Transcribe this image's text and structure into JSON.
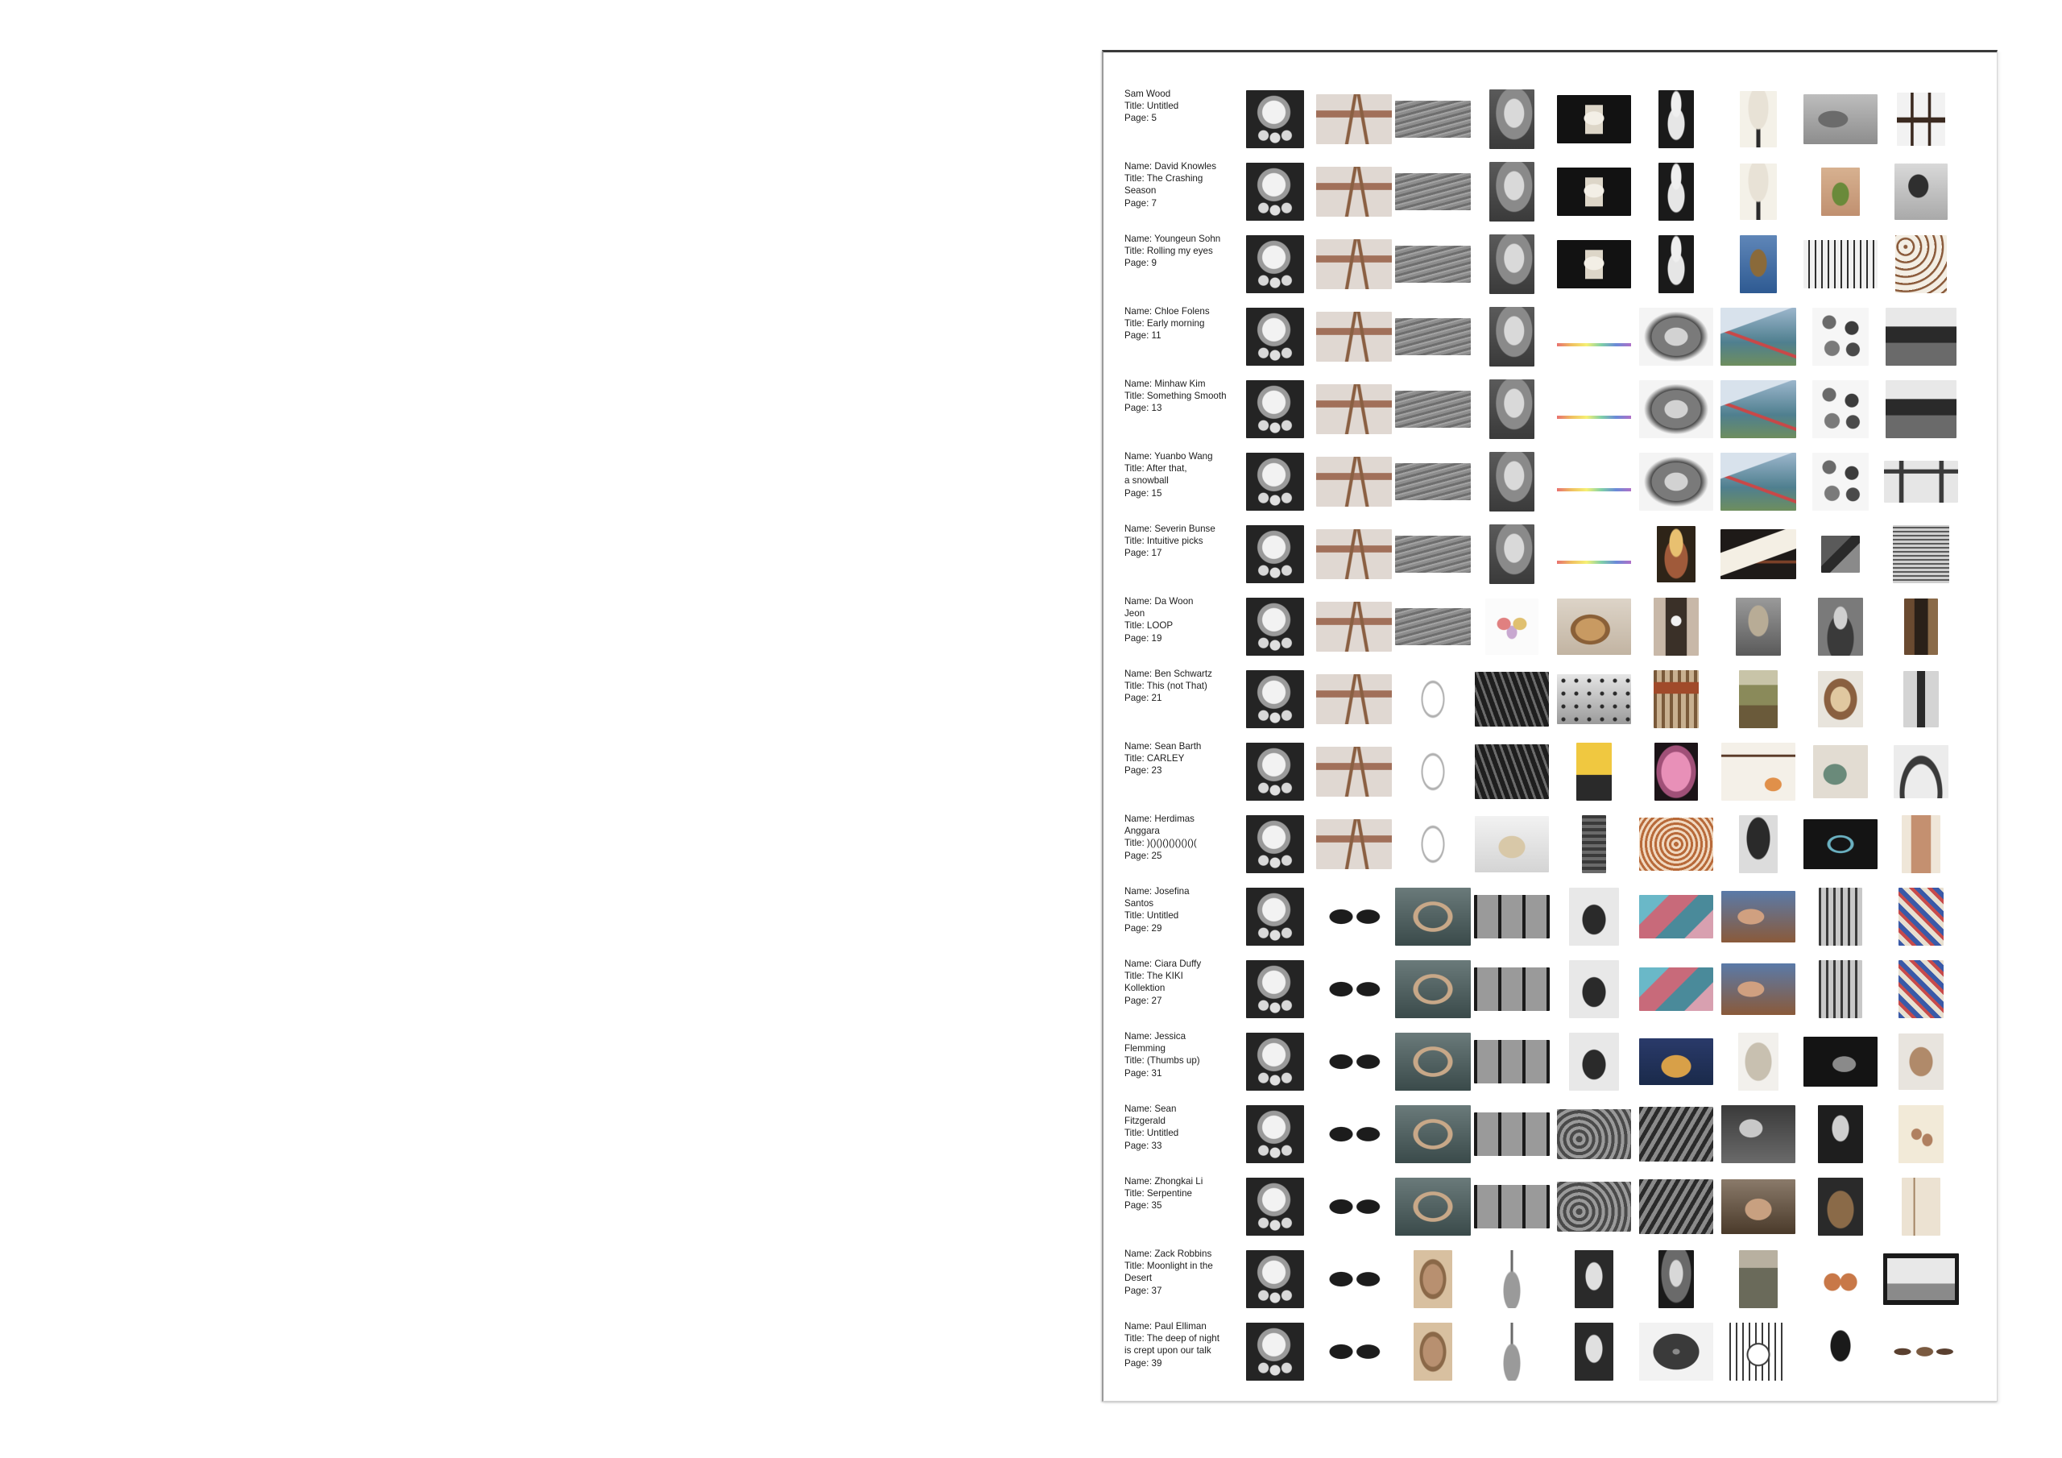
{
  "layout": {
    "thumb_columns": 9
  },
  "entries": [
    {
      "lines": [
        "Sam Wood",
        "Title: Untitled",
        "Page: 5"
      ],
      "thumbs": [
        "moon-crescent",
        "wooden-deer",
        "grey-texture-strip",
        "fist-sculpture",
        "pagoda-object",
        "venus-statue",
        "goblet",
        "elephant-photo",
        "wooden-chair"
      ]
    },
    {
      "lines": [
        "Name: David Knowles",
        "Title: The Crashing Season",
        "Page: 7"
      ],
      "thumbs": [
        "moon-crescent",
        "wooden-deer",
        "grey-texture-strip",
        "fist-sculpture",
        "pagoda-object",
        "venus-statue",
        "goblet",
        "small-figure-photo",
        "bw-figure-photo"
      ]
    },
    {
      "lines": [
        "Name: Youngeun Sohn",
        "Title: Rolling my eyes",
        "Page: 9"
      ],
      "thumbs": [
        "moon-crescent",
        "wooden-deer",
        "grey-texture-strip",
        "fist-sculpture",
        "pagoda-object",
        "venus-statue",
        "blue-pendant",
        "group-photo",
        "figure-chart"
      ]
    },
    {
      "lines": [
        "Name: Chloe Folens",
        "Title: Early morning",
        "Page: 11"
      ],
      "thumbs": [
        "moon-crescent",
        "wooden-deer",
        "grey-texture-strip",
        "fist-sculpture",
        "color-spectrum",
        "grey-stone",
        "mountain-landscape",
        "vessel-collection",
        "bw-house-photo"
      ]
    },
    {
      "lines": [
        "Name: Minhaw Kim",
        "Title: Something Smooth",
        "Page: 13"
      ],
      "thumbs": [
        "moon-crescent",
        "wooden-deer",
        "grey-texture-strip",
        "fist-sculpture",
        "color-spectrum",
        "grey-stone",
        "mountain-landscape",
        "vessel-collection",
        "bw-house-photo"
      ]
    },
    {
      "lines": [
        "Name: Yuanbo Wang",
        "Title: After that,",
        "a snowball",
        "Page: 15"
      ],
      "thumbs": [
        "moon-crescent",
        "wooden-deer",
        "grey-texture-strip",
        "fist-sculpture",
        "color-spectrum",
        "grey-stone",
        "mountain-landscape",
        "vessel-collection",
        "wooden-table"
      ]
    },
    {
      "lines": [
        "Name: Severin Bunse",
        "Title: Intuitive picks",
        "Page: 17"
      ],
      "thumbs": [
        "moon-crescent",
        "wooden-deer",
        "grey-texture-strip",
        "fist-sculpture",
        "color-spectrum",
        "masked-figure",
        "white-box-object",
        "grey-book",
        "ornate-cabinet"
      ]
    },
    {
      "lines": [
        "Name: Da Woon",
        "Jeon",
        "Title: LOOP",
        "Page: 19"
      ],
      "thumbs": [
        "moon-crescent",
        "wooden-deer",
        "grey-texture-strip",
        "ink-blot",
        "horn-object",
        "mantel-clock",
        "carved-figure",
        "seated-portrait",
        "doorway-photo"
      ]
    },
    {
      "lines": [
        "Name: Ben Schwartz",
        "Title: This (not That)",
        "Page: 21"
      ],
      "thumbs": [
        "moon-crescent",
        "wooden-deer",
        "line-drawing",
        "dark-architecture",
        "dotted-sky",
        "rust-panel",
        "field-landscape",
        "shell-object",
        "tall-figure"
      ]
    },
    {
      "lines": [
        "Name: Sean Barth",
        "Title: CARLEY",
        "Page: 23"
      ],
      "thumbs": [
        "moon-crescent",
        "wooden-deer",
        "line-drawing",
        "dark-architecture",
        "yellow-interior",
        "pink-mask",
        "hanging-objects",
        "ceramic-mug",
        "arch-sculpture"
      ]
    },
    {
      "lines": [
        "Name: Herdimas",
        "Anggara",
        "Title: )()()()()()()()(",
        "Page: 25"
      ],
      "thumbs": [
        "moon-crescent",
        "wooden-deer",
        "line-drawing",
        "goat-sculpture",
        "stone-pillar",
        "woven-knot",
        "hooded-figure",
        "bead-loop",
        "chair-illustration"
      ]
    },
    {
      "lines": [
        "Name: Josefina",
        "Santos",
        "Title: Untitled",
        "Page: 29"
      ],
      "thumbs": [
        "moon-crescent",
        "black-stones",
        "stone-circle",
        "film-strip",
        "rider-photo",
        "crystal-cluster",
        "embrace-photo",
        "iron-gate",
        "pattern-textile"
      ]
    },
    {
      "lines": [
        "Name: Ciara Duffy",
        "Title: The KIKI",
        "Kollektion",
        "Page: 27"
      ],
      "thumbs": [
        "moon-crescent",
        "black-stones",
        "stone-circle",
        "film-strip",
        "rider-photo",
        "crystal-cluster",
        "embrace-photo",
        "iron-gate",
        "pattern-textile"
      ]
    },
    {
      "lines": [
        "Name: Jessica",
        "Flemming",
        "Title: (Thumbs up)",
        "Page: 31"
      ],
      "thumbs": [
        "moon-crescent",
        "black-stones",
        "stone-circle",
        "film-strip",
        "rider-photo",
        "gold-canoe",
        "carved-stele",
        "dark-reclining",
        "armchair-photo"
      ]
    },
    {
      "lines": [
        "Name: Sean",
        "Fitzgerald",
        "Title: Untitled",
        "Page: 33"
      ],
      "thumbs": [
        "moon-crescent",
        "black-stones",
        "stone-circle",
        "film-strip",
        "woven-shells",
        "workshop-photo",
        "man-photo",
        "bw-portrait",
        "handprint-paper"
      ]
    },
    {
      "lines": [
        "Name: Zhongkai Li",
        "Title: Serpentine",
        "Page: 35"
      ],
      "thumbs": [
        "moon-crescent",
        "black-stones",
        "stone-circle",
        "film-strip",
        "woven-shells",
        "workshop-photo",
        "reclining-photo",
        "clay-bowl",
        "brown-sketch"
      ]
    },
    {
      "lines": [
        "Name: Zack Robbins",
        "Title: Moonlight in the",
        "Desert",
        "Page: 37"
      ],
      "thumbs": [
        "moon-crescent",
        "black-stones",
        "ear-relief",
        "spout-vessel",
        "couple-photo",
        "night-glow",
        "ruin-photo",
        "terracotta-figures",
        "framed-landscape"
      ]
    },
    {
      "lines": [
        "Name: Paul Elliman",
        "Title: The deep of night",
        "is crept upon our talk",
        "Page: 39"
      ],
      "thumbs": [
        "moon-crescent",
        "black-stones",
        "ear-relief",
        "spout-vessel",
        "couple-photo",
        "oval-slit",
        "ornament-frame",
        "dancer-photo",
        "egg-pair"
      ]
    }
  ]
}
